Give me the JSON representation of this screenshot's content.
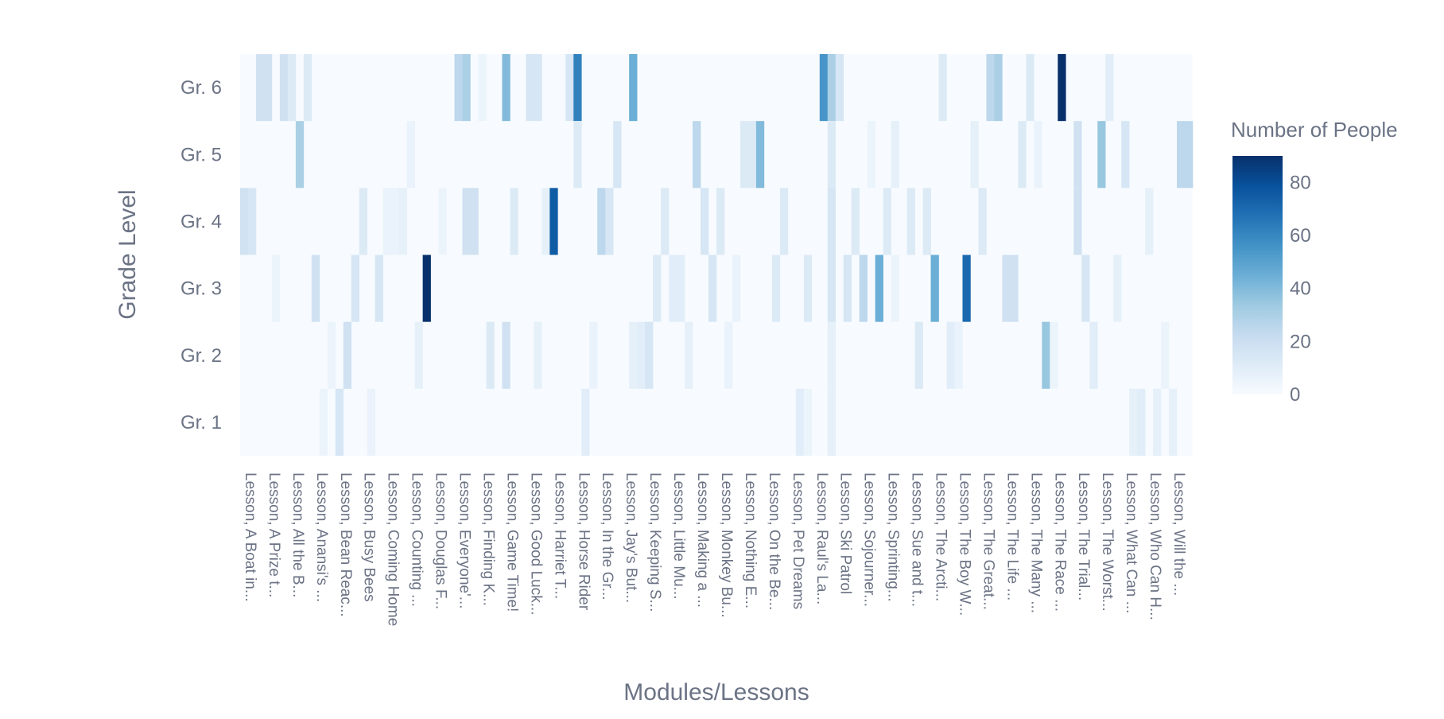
{
  "chart_data": {
    "type": "heatmap",
    "xlabel": "Modules/Lessons",
    "ylabel": "Grade Level",
    "colorbar_title": "Number of People",
    "colorbar_ticks": [
      0,
      20,
      40,
      60,
      80
    ],
    "zmin": 0,
    "zmax": 90,
    "colorscale": [
      "#f7fbff",
      "#deebf7",
      "#c6dbef",
      "#9ecae1",
      "#6baed6",
      "#4292c6",
      "#2171b5",
      "#08519c",
      "#08306b"
    ],
    "y_categories": [
      "Gr. 1",
      "Gr. 2",
      "Gr. 3",
      "Gr. 4",
      "Gr. 5",
      "Gr. 6"
    ],
    "x_tick_labels": [
      "Lesson, A Boat in...",
      "Lesson, A Prize t...",
      "Lesson, All the B...",
      "Lesson, Anansi's ...",
      "Lesson, Bean Reac...",
      "Lesson, Busy Bees",
      "Lesson, Coming Home",
      "Lesson, Counting ...",
      "Lesson, Douglas F...",
      "Lesson, Everyone'...",
      "Lesson, Finding K...",
      "Lesson, Game Time!",
      "Lesson, Good Luck...",
      "Lesson, Harriet T...",
      "Lesson, Horse Rider",
      "Lesson, In the Gr...",
      "Lesson, Jay's But...",
      "Lesson, Keeping S...",
      "Lesson, Little Mu...",
      "Lesson, Making a ...",
      "Lesson, Monkey Bu...",
      "Lesson, Nothing E...",
      "Lesson, On the Be...",
      "Lesson, Pet Dreams",
      "Lesson, Raul's La...",
      "Lesson, Ski Patrol",
      "Lesson, Sojourner...",
      "Lesson, Sprinting...",
      "Lesson, Sue and t...",
      "Lesson, The Arcti...",
      "Lesson, The Boy W...",
      "Lesson, The Great...",
      "Lesson, The Life ...",
      "Lesson, The Many ...",
      "Lesson, The Race ...",
      "Lesson, The Trial...",
      "Lesson, The Worst...",
      "Lesson, What Can ...",
      "Lesson, Who Can H...",
      "Lesson, Will the ..."
    ],
    "num_columns": 120,
    "cells": [
      {
        "row": "Gr. 6",
        "col": 2,
        "value": 18
      },
      {
        "row": "Gr. 6",
        "col": 3,
        "value": 18
      },
      {
        "row": "Gr. 6",
        "col": 5,
        "value": 18
      },
      {
        "row": "Gr. 6",
        "col": 6,
        "value": 12
      },
      {
        "row": "Gr. 6",
        "col": 8,
        "value": 12
      },
      {
        "row": "Gr. 6",
        "col": 27,
        "value": 25
      },
      {
        "row": "Gr. 6",
        "col": 28,
        "value": 30
      },
      {
        "row": "Gr. 6",
        "col": 30,
        "value": 5
      },
      {
        "row": "Gr. 6",
        "col": 33,
        "value": 40
      },
      {
        "row": "Gr. 6",
        "col": 36,
        "value": 15
      },
      {
        "row": "Gr. 6",
        "col": 37,
        "value": 15
      },
      {
        "row": "Gr. 6",
        "col": 41,
        "value": 15
      },
      {
        "row": "Gr. 6",
        "col": 42,
        "value": 62
      },
      {
        "row": "Gr. 6",
        "col": 49,
        "value": 45
      },
      {
        "row": "Gr. 6",
        "col": 73,
        "value": 55
      },
      {
        "row": "Gr. 6",
        "col": 74,
        "value": 30
      },
      {
        "row": "Gr. 6",
        "col": 75,
        "value": 15
      },
      {
        "row": "Gr. 6",
        "col": 88,
        "value": 12
      },
      {
        "row": "Gr. 6",
        "col": 94,
        "value": 25
      },
      {
        "row": "Gr. 6",
        "col": 95,
        "value": 30
      },
      {
        "row": "Gr. 6",
        "col": 99,
        "value": 12
      },
      {
        "row": "Gr. 6",
        "col": 103,
        "value": 90
      },
      {
        "row": "Gr. 6",
        "col": 109,
        "value": 10
      },
      {
        "row": "Gr. 5",
        "col": 7,
        "value": 30
      },
      {
        "row": "Gr. 5",
        "col": 21,
        "value": 6
      },
      {
        "row": "Gr. 5",
        "col": 42,
        "value": 12
      },
      {
        "row": "Gr. 5",
        "col": 47,
        "value": 15
      },
      {
        "row": "Gr. 5",
        "col": 57,
        "value": 25
      },
      {
        "row": "Gr. 5",
        "col": 63,
        "value": 12
      },
      {
        "row": "Gr. 5",
        "col": 64,
        "value": 12
      },
      {
        "row": "Gr. 5",
        "col": 65,
        "value": 40
      },
      {
        "row": "Gr. 5",
        "col": 74,
        "value": 12
      },
      {
        "row": "Gr. 5",
        "col": 79,
        "value": 5
      },
      {
        "row": "Gr. 5",
        "col": 82,
        "value": 8
      },
      {
        "row": "Gr. 5",
        "col": 92,
        "value": 8
      },
      {
        "row": "Gr. 5",
        "col": 98,
        "value": 12
      },
      {
        "row": "Gr. 5",
        "col": 100,
        "value": 6
      },
      {
        "row": "Gr. 5",
        "col": 105,
        "value": 18
      },
      {
        "row": "Gr. 5",
        "col": 108,
        "value": 35
      },
      {
        "row": "Gr. 5",
        "col": 111,
        "value": 15
      },
      {
        "row": "Gr. 5",
        "col": 118,
        "value": 25
      },
      {
        "row": "Gr. 5",
        "col": 119,
        "value": 25
      },
      {
        "row": "Gr. 4",
        "col": 0,
        "value": 18
      },
      {
        "row": "Gr. 4",
        "col": 1,
        "value": 15
      },
      {
        "row": "Gr. 4",
        "col": 15,
        "value": 12
      },
      {
        "row": "Gr. 4",
        "col": 18,
        "value": 6
      },
      {
        "row": "Gr. 4",
        "col": 19,
        "value": 6
      },
      {
        "row": "Gr. 4",
        "col": 20,
        "value": 8
      },
      {
        "row": "Gr. 4",
        "col": 25,
        "value": 5
      },
      {
        "row": "Gr. 4",
        "col": 28,
        "value": 18
      },
      {
        "row": "Gr. 4",
        "col": 29,
        "value": 18
      },
      {
        "row": "Gr. 4",
        "col": 34,
        "value": 12
      },
      {
        "row": "Gr. 4",
        "col": 38,
        "value": 8
      },
      {
        "row": "Gr. 4",
        "col": 39,
        "value": 75
      },
      {
        "row": "Gr. 4",
        "col": 45,
        "value": 25
      },
      {
        "row": "Gr. 4",
        "col": 46,
        "value": 15
      },
      {
        "row": "Gr. 4",
        "col": 53,
        "value": 12
      },
      {
        "row": "Gr. 4",
        "col": 58,
        "value": 15
      },
      {
        "row": "Gr. 4",
        "col": 60,
        "value": 12
      },
      {
        "row": "Gr. 4",
        "col": 68,
        "value": 12
      },
      {
        "row": "Gr. 4",
        "col": 74,
        "value": 15
      },
      {
        "row": "Gr. 4",
        "col": 77,
        "value": 12
      },
      {
        "row": "Gr. 4",
        "col": 81,
        "value": 12
      },
      {
        "row": "Gr. 4",
        "col": 84,
        "value": 12
      },
      {
        "row": "Gr. 4",
        "col": 86,
        "value": 12
      },
      {
        "row": "Gr. 4",
        "col": 93,
        "value": 12
      },
      {
        "row": "Gr. 4",
        "col": 105,
        "value": 18
      },
      {
        "row": "Gr. 4",
        "col": 114,
        "value": 8
      },
      {
        "row": "Gr. 3",
        "col": 4,
        "value": 5
      },
      {
        "row": "Gr. 3",
        "col": 9,
        "value": 18
      },
      {
        "row": "Gr. 3",
        "col": 14,
        "value": 15
      },
      {
        "row": "Gr. 3",
        "col": 17,
        "value": 15
      },
      {
        "row": "Gr. 3",
        "col": 23,
        "value": 90
      },
      {
        "row": "Gr. 3",
        "col": 52,
        "value": 12
      },
      {
        "row": "Gr. 3",
        "col": 54,
        "value": 10
      },
      {
        "row": "Gr. 3",
        "col": 55,
        "value": 10
      },
      {
        "row": "Gr. 3",
        "col": 59,
        "value": 15
      },
      {
        "row": "Gr. 3",
        "col": 62,
        "value": 6
      },
      {
        "row": "Gr. 3",
        "col": 67,
        "value": 12
      },
      {
        "row": "Gr. 3",
        "col": 71,
        "value": 12
      },
      {
        "row": "Gr. 3",
        "col": 74,
        "value": 15
      },
      {
        "row": "Gr. 3",
        "col": 76,
        "value": 15
      },
      {
        "row": "Gr. 3",
        "col": 78,
        "value": 25
      },
      {
        "row": "Gr. 3",
        "col": 80,
        "value": 45
      },
      {
        "row": "Gr. 3",
        "col": 82,
        "value": 5
      },
      {
        "row": "Gr. 3",
        "col": 87,
        "value": 45
      },
      {
        "row": "Gr. 3",
        "col": 91,
        "value": 70
      },
      {
        "row": "Gr. 3",
        "col": 96,
        "value": 18
      },
      {
        "row": "Gr. 3",
        "col": 97,
        "value": 18
      },
      {
        "row": "Gr. 3",
        "col": 106,
        "value": 15
      },
      {
        "row": "Gr. 3",
        "col": 110,
        "value": 8
      },
      {
        "row": "Gr. 2",
        "col": 11,
        "value": 5
      },
      {
        "row": "Gr. 2",
        "col": 13,
        "value": 18
      },
      {
        "row": "Gr. 2",
        "col": 22,
        "value": 8
      },
      {
        "row": "Gr. 2",
        "col": 31,
        "value": 12
      },
      {
        "row": "Gr. 2",
        "col": 33,
        "value": 18
      },
      {
        "row": "Gr. 2",
        "col": 37,
        "value": 8
      },
      {
        "row": "Gr. 2",
        "col": 44,
        "value": 6
      },
      {
        "row": "Gr. 2",
        "col": 49,
        "value": 8
      },
      {
        "row": "Gr. 2",
        "col": 50,
        "value": 10
      },
      {
        "row": "Gr. 2",
        "col": 51,
        "value": 15
      },
      {
        "row": "Gr. 2",
        "col": 56,
        "value": 8
      },
      {
        "row": "Gr. 2",
        "col": 61,
        "value": 6
      },
      {
        "row": "Gr. 2",
        "col": 74,
        "value": 8
      },
      {
        "row": "Gr. 2",
        "col": 85,
        "value": 12
      },
      {
        "row": "Gr. 2",
        "col": 89,
        "value": 10
      },
      {
        "row": "Gr. 2",
        "col": 90,
        "value": 6
      },
      {
        "row": "Gr. 2",
        "col": 101,
        "value": 35
      },
      {
        "row": "Gr. 2",
        "col": 102,
        "value": 5
      },
      {
        "row": "Gr. 2",
        "col": 107,
        "value": 10
      },
      {
        "row": "Gr. 2",
        "col": 116,
        "value": 5
      },
      {
        "row": "Gr. 1",
        "col": 10,
        "value": 5
      },
      {
        "row": "Gr. 1",
        "col": 12,
        "value": 15
      },
      {
        "row": "Gr. 1",
        "col": 16,
        "value": 6
      },
      {
        "row": "Gr. 1",
        "col": 43,
        "value": 10
      },
      {
        "row": "Gr. 1",
        "col": 70,
        "value": 10
      },
      {
        "row": "Gr. 1",
        "col": 71,
        "value": 5
      },
      {
        "row": "Gr. 1",
        "col": 74,
        "value": 8
      },
      {
        "row": "Gr. 1",
        "col": 112,
        "value": 8
      },
      {
        "row": "Gr. 1",
        "col": 113,
        "value": 10
      },
      {
        "row": "Gr. 1",
        "col": 115,
        "value": 8
      },
      {
        "row": "Gr. 1",
        "col": 117,
        "value": 8
      }
    ]
  }
}
